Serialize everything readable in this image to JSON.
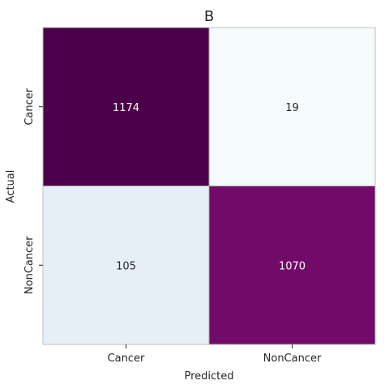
{
  "chart_data": {
    "type": "heatmap",
    "title": "B",
    "xlabel": "Predicted",
    "ylabel": "Actual",
    "x_categories": [
      "Cancer",
      "NonCancer"
    ],
    "y_categories": [
      "Cancer",
      "NonCancer"
    ],
    "values": [
      [
        1174,
        19
      ],
      [
        105,
        1070
      ]
    ],
    "colormap": "BuPu",
    "cell_colors": [
      [
        "#4a0048",
        "#f6fbfc"
      ],
      [
        "#e6eff8",
        "#720a69"
      ]
    ],
    "cell_text_colors": [
      [
        "#ffffff",
        "#262626"
      ],
      [
        "#262626",
        "#ffffff"
      ]
    ],
    "grid": false,
    "colorbar": false
  }
}
